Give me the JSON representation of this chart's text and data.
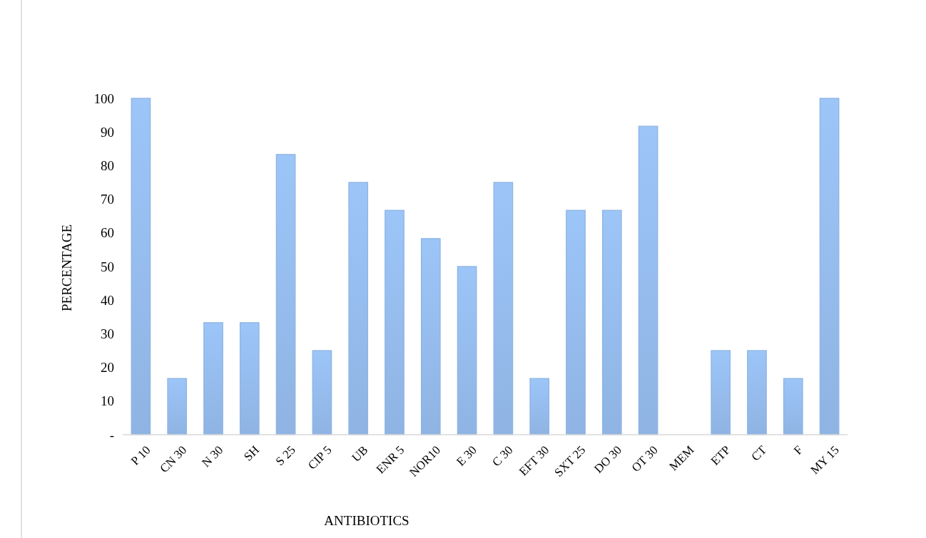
{
  "chart_data": {
    "type": "bar",
    "xlabel": "ANTIBIOTICS",
    "ylabel": "PERCENTAGE",
    "categories": [
      "P 10",
      "CN 30",
      "N 30",
      "SH",
      "S 25",
      "CIP 5",
      "UB",
      "ENR 5",
      "NOR10",
      "E 30",
      "C 30",
      "EFT 30",
      "SXT 25",
      "DO 30",
      "OT 30",
      "MEM",
      "ETP",
      "CT",
      "F",
      "MY 15"
    ],
    "values": [
      100,
      16.7,
      33.3,
      33.3,
      83.3,
      25,
      75,
      66.7,
      58.3,
      50,
      75,
      16.7,
      66.7,
      66.7,
      91.7,
      0,
      25,
      25,
      16.7,
      100
    ],
    "color": "#8fb4e3",
    "ylim": [
      0,
      100
    ],
    "yticks": [
      {
        "value": 0,
        "label": "-"
      },
      {
        "value": 10,
        "label": "10"
      },
      {
        "value": 20,
        "label": "20"
      },
      {
        "value": 30,
        "label": "30"
      },
      {
        "value": 40,
        "label": "40"
      },
      {
        "value": 50,
        "label": "50"
      },
      {
        "value": 60,
        "label": "60"
      },
      {
        "value": 70,
        "label": "70"
      },
      {
        "value": 80,
        "label": "80"
      },
      {
        "value": 90,
        "label": "90"
      },
      {
        "value": 100,
        "label": "100"
      }
    ],
    "grid": false
  }
}
